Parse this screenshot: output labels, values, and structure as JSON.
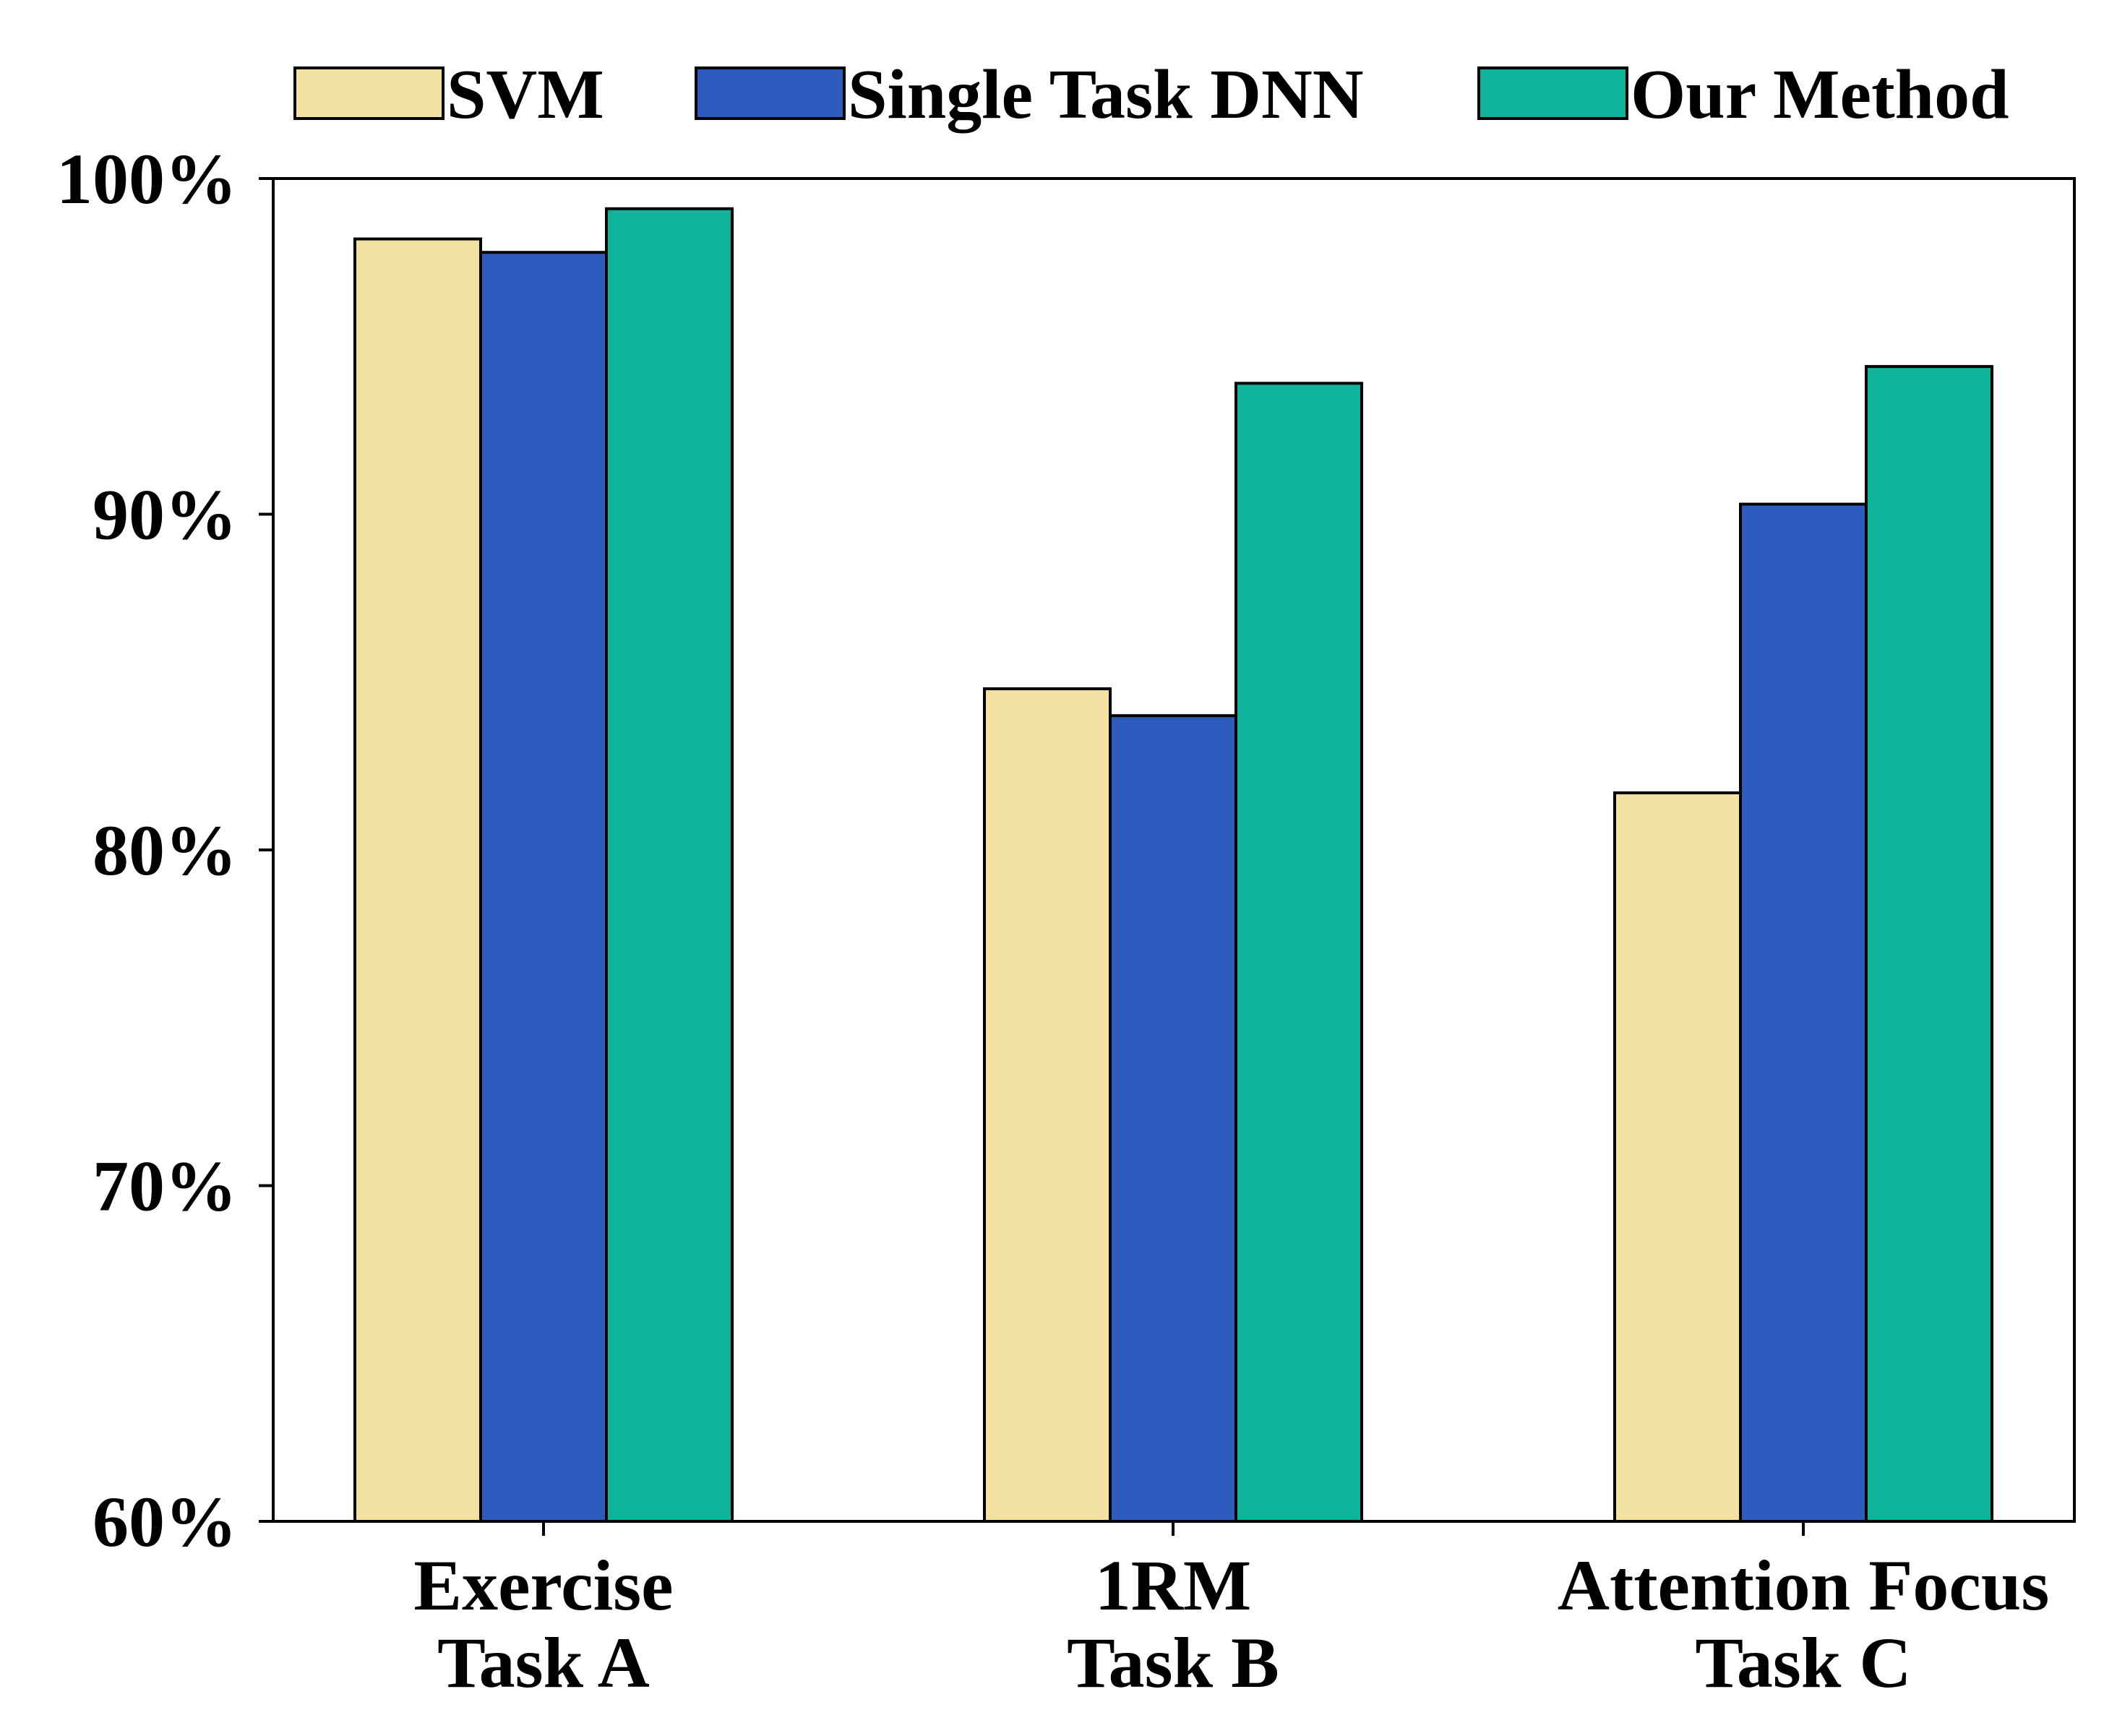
{
  "chart_data": {
    "type": "bar",
    "categories": [
      [
        "Exercise",
        "Task A"
      ],
      [
        "1RM",
        "Task B"
      ],
      [
        "Attention Focus",
        "Task C"
      ]
    ],
    "series": [
      {
        "name": "SVM",
        "color": "#F2E1A0",
        "values": [
          98.2,
          84.8,
          81.7
        ]
      },
      {
        "name": "Single Task DNN",
        "color": "#2E5BBE",
        "values": [
          97.8,
          84.0,
          90.3
        ]
      },
      {
        "name": "Our Method",
        "color": "#0EB499",
        "values": [
          99.1,
          93.9,
          94.4
        ]
      }
    ],
    "ylim": [
      60,
      100
    ],
    "yticks": [
      {
        "value": 60,
        "label": "60%"
      },
      {
        "value": 70,
        "label": "70%"
      },
      {
        "value": 80,
        "label": "80%"
      },
      {
        "value": 90,
        "label": "90%"
      },
      {
        "value": 100,
        "label": "100%"
      }
    ],
    "legend_position": "top",
    "grid": false,
    "title": "",
    "xlabel": "",
    "ylabel": ""
  }
}
